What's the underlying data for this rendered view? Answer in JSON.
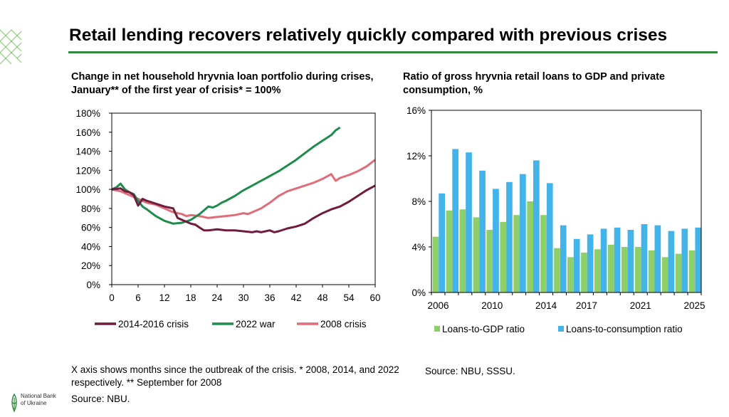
{
  "slide_title": "Retail lending recovers relatively quickly compared with previous crises",
  "left": {
    "title": "Change in net household hryvnia loan portfolio during crises, January** of the first year of crisis* = 100%",
    "note": "X axis shows months since the outbreak of the crisis. * 2008, 2014, and 2022 respectively. ** September for 2008",
    "source": "Source: NBU."
  },
  "right": {
    "title": "Ratio of gross hryvnia retail loans to GDP and private consumption, %",
    "source": "Source: NBU, SSSU."
  },
  "logo": {
    "line1": "National Bank",
    "line2": "of Ukraine"
  },
  "colors": {
    "accent": "#2e8a3c",
    "crisis_2014": "#701c3c",
    "war_2022": "#1f8b4c",
    "crisis_2008": "#e06d7a",
    "gdp_bar": "#8fcf6a",
    "consumption_bar": "#43b4ea"
  },
  "chart_data": [
    {
      "type": "line",
      "x_unit": "months since the outbreak of the crisis",
      "xlim": [
        0,
        60
      ],
      "xticks": [
        "0",
        "6",
        "12",
        "18",
        "24",
        "30",
        "36",
        "42",
        "48",
        "54",
        "60"
      ],
      "ylim": [
        0,
        180
      ],
      "yticks": [
        "0%",
        "20%",
        "40%",
        "60%",
        "80%",
        "100%",
        "120%",
        "140%",
        "160%",
        "180%"
      ],
      "grid": false,
      "legend_position": "bottom",
      "series": [
        {
          "name": "2014-2016 crisis",
          "color": "#701c3c",
          "x": [
            0,
            2,
            3,
            4,
            5,
            6,
            7,
            8,
            10,
            12,
            14,
            15,
            16,
            17,
            18,
            19,
            20,
            21,
            22,
            24,
            26,
            28,
            30,
            32,
            33,
            34,
            36,
            37,
            38,
            40,
            42,
            44,
            46,
            48,
            50,
            52,
            54,
            56,
            58,
            60
          ],
          "y": [
            100,
            101,
            98,
            97,
            94,
            83,
            90,
            88,
            85,
            82,
            80,
            70,
            68,
            66,
            64,
            63,
            60,
            57,
            57,
            58,
            57,
            57,
            56,
            55,
            56,
            55,
            57,
            55,
            56,
            59,
            61,
            64,
            70,
            75,
            79,
            82,
            87,
            93,
            99,
            104
          ]
        },
        {
          "name": "2022 war",
          "color": "#1f8b4c",
          "x": [
            0,
            1,
            2,
            3,
            4,
            5,
            6,
            7,
            8,
            10,
            12,
            14,
            16,
            18,
            20,
            21,
            22,
            23,
            24,
            25,
            26,
            28,
            30,
            32,
            34,
            36,
            38,
            40,
            42,
            44,
            46,
            48,
            50,
            51,
            52
          ],
          "y": [
            100,
            102,
            106,
            100,
            97,
            95,
            88,
            82,
            79,
            72,
            67,
            64,
            65,
            68,
            74,
            78,
            82,
            81,
            83,
            86,
            88,
            93,
            99,
            104,
            109,
            114,
            119,
            125,
            131,
            138,
            145,
            151,
            157,
            162,
            165
          ]
        },
        {
          "name": "2008 crisis",
          "color": "#e06d7a",
          "x": [
            0,
            2,
            4,
            6,
            8,
            10,
            12,
            14,
            16,
            17,
            18,
            20,
            22,
            24,
            26,
            28,
            30,
            31,
            32,
            34,
            36,
            38,
            40,
            42,
            44,
            46,
            48,
            50,
            51,
            52,
            54,
            56,
            58,
            60
          ],
          "y": [
            100,
            98,
            94,
            90,
            86,
            84,
            80,
            76,
            74,
            72,
            73,
            72,
            70,
            71,
            72,
            73,
            75,
            74,
            76,
            80,
            86,
            93,
            98,
            101,
            104,
            107,
            111,
            116,
            109,
            112,
            115,
            119,
            124,
            131
          ]
        }
      ]
    },
    {
      "type": "bar",
      "categories": [
        "2006",
        "2007",
        "2008",
        "2009",
        "2010",
        "2011",
        "2012",
        "2013",
        "2014",
        "2015",
        "2016",
        "2017",
        "2018",
        "2019",
        "2020",
        "2021",
        "2022",
        "2023",
        "2024",
        "2025"
      ],
      "xtick_labels": [
        "2006",
        "2010",
        "2014",
        "2017",
        "2021",
        "2025"
      ],
      "ylim": [
        0,
        16
      ],
      "yticks": [
        "0%",
        "4%",
        "8%",
        "12%",
        "16%"
      ],
      "grid": false,
      "legend_position": "bottom",
      "series": [
        {
          "name": "Loans-to-GDP ratio",
          "color": "#8fcf6a",
          "values": [
            4.9,
            7.2,
            7.3,
            6.6,
            5.5,
            6.2,
            6.8,
            8.0,
            6.8,
            3.9,
            3.1,
            3.5,
            3.8,
            4.2,
            4.0,
            4.0,
            3.7,
            3.1,
            3.4,
            3.7
          ]
        },
        {
          "name": "Loans-to-consumption ratio",
          "color": "#43b4ea",
          "values": [
            8.7,
            12.6,
            12.3,
            10.7,
            9.1,
            9.7,
            10.4,
            11.6,
            9.6,
            5.9,
            4.7,
            5.1,
            5.6,
            5.7,
            5.5,
            6.0,
            5.9,
            5.4,
            5.6,
            5.7
          ]
        }
      ]
    }
  ]
}
